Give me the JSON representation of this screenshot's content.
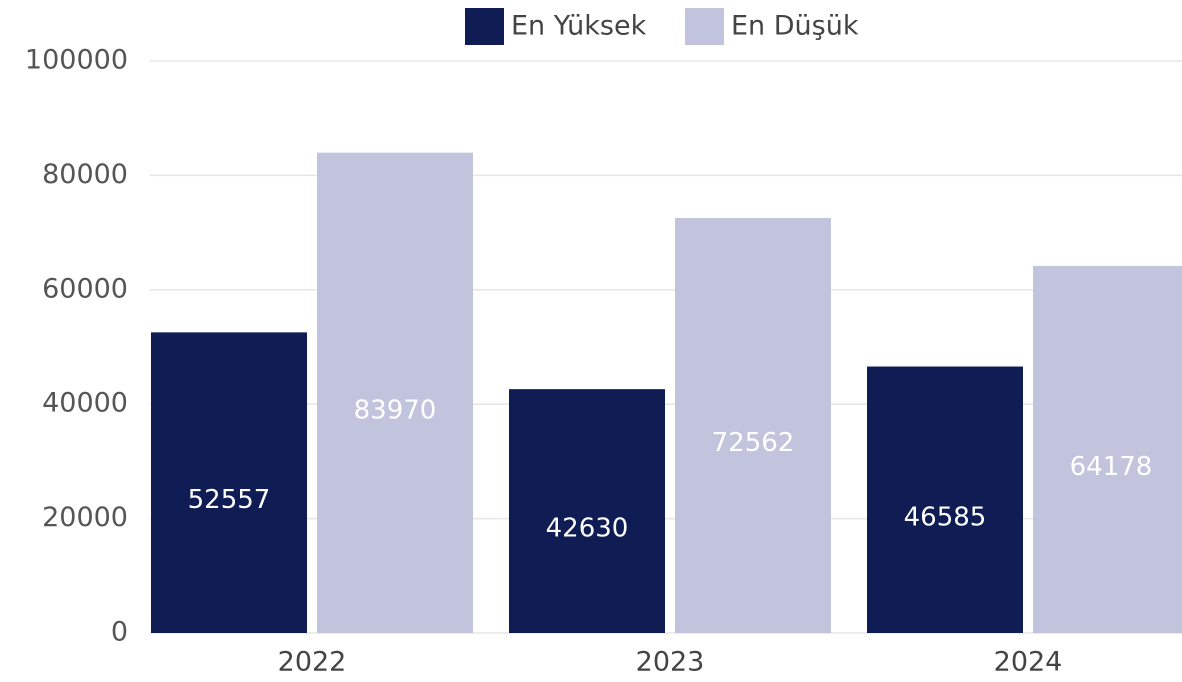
{
  "chart_data": {
    "type": "bar",
    "categories": [
      "2022",
      "2023",
      "2024"
    ],
    "series": [
      {
        "name": "En Yüksek",
        "color": "#0f1d54",
        "values": [
          52557,
          42630,
          46585
        ]
      },
      {
        "name": "En Düşük",
        "color": "#c2c3dd",
        "values": [
          83970,
          72562,
          64178
        ]
      }
    ],
    "ylim": [
      0,
      100000
    ],
    "yticks": [
      0,
      20000,
      40000,
      60000,
      80000,
      100000
    ],
    "grid": true,
    "legend": "top"
  }
}
